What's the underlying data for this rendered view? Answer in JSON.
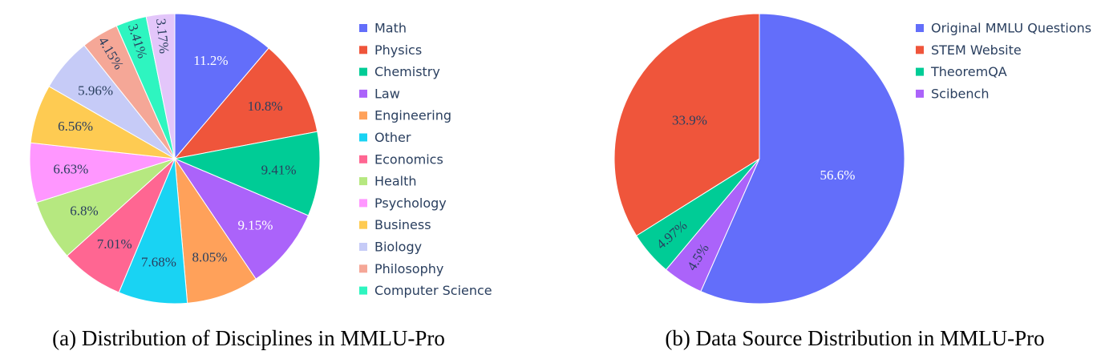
{
  "chart_data": [
    {
      "type": "pie",
      "caption": "(a) Distribution of Disciplines in MMLU-Pro",
      "legend_position": "right",
      "direction": "clockwise",
      "start": "top",
      "slices": [
        {
          "label": "Math",
          "value": 11.2,
          "text": "11.2%",
          "color": "#636efa",
          "text_color": "#ffffff"
        },
        {
          "label": "Physics",
          "value": 10.8,
          "text": "10.8%",
          "color": "#ef553b",
          "text_color": "#2a3f5f"
        },
        {
          "label": "Chemistry",
          "value": 9.41,
          "text": "9.41%",
          "color": "#00cc96",
          "text_color": "#2a3f5f"
        },
        {
          "label": "Law",
          "value": 9.15,
          "text": "9.15%",
          "color": "#ab63fa",
          "text_color": "#ffffff"
        },
        {
          "label": "Engineering",
          "value": 8.05,
          "text": "8.05%",
          "color": "#ffa15a",
          "text_color": "#2a3f5f"
        },
        {
          "label": "Other",
          "value": 7.68,
          "text": "7.68%",
          "color": "#19d3f3",
          "text_color": "#2a3f5f"
        },
        {
          "label": "Economics",
          "value": 7.01,
          "text": "7.01%",
          "color": "#ff6692",
          "text_color": "#2a3f5f"
        },
        {
          "label": "Health",
          "value": 6.8,
          "text": "6.8%",
          "color": "#b6e880",
          "text_color": "#2a3f5f"
        },
        {
          "label": "Psychology",
          "value": 6.63,
          "text": "6.63%",
          "color": "#ff97ff",
          "text_color": "#2a3f5f"
        },
        {
          "label": "Business",
          "value": 6.56,
          "text": "6.56%",
          "color": "#fecb52",
          "text_color": "#2a3f5f"
        },
        {
          "label": "Biology",
          "value": 5.96,
          "text": "5.96%",
          "color": "#c6cbf7",
          "text_color": "#2a3f5f"
        },
        {
          "label": "Philosophy",
          "value": 4.15,
          "text": "4.15%",
          "color": "#f5a797",
          "text_color": "#2a3f5f"
        },
        {
          "label": "Computer Science",
          "value": 3.41,
          "text": "3.41%",
          "color": "#2ef5c0",
          "text_color": "#2a3f5f"
        },
        {
          "label": "",
          "value": 3.17,
          "text": "3.17%",
          "color": "#e3c6fa",
          "text_color": "#2a3f5f"
        }
      ]
    },
    {
      "type": "pie",
      "caption": "(b) Data Source Distribution in MMLU-Pro",
      "legend_position": "right",
      "direction": "clockwise",
      "start": "top",
      "slices": [
        {
          "label": "Original MMLU Questions",
          "value": 56.6,
          "text": "56.6%",
          "color": "#636efa",
          "text_color": "#ffffff"
        },
        {
          "label": "Scibench",
          "value": 4.5,
          "text": "4.5%",
          "color": "#ab63fa",
          "text_color": "#2a3f5f"
        },
        {
          "label": "TheoremQA",
          "value": 4.97,
          "text": "4.97%",
          "color": "#00cc96",
          "text_color": "#2a3f5f"
        },
        {
          "label": "STEM Website",
          "value": 33.9,
          "text": "33.9%",
          "color": "#ef553b",
          "text_color": "#2a3f5f"
        }
      ],
      "legend_order": [
        "Original MMLU Questions",
        "STEM Website",
        "TheoremQA",
        "Scibench"
      ]
    }
  ]
}
